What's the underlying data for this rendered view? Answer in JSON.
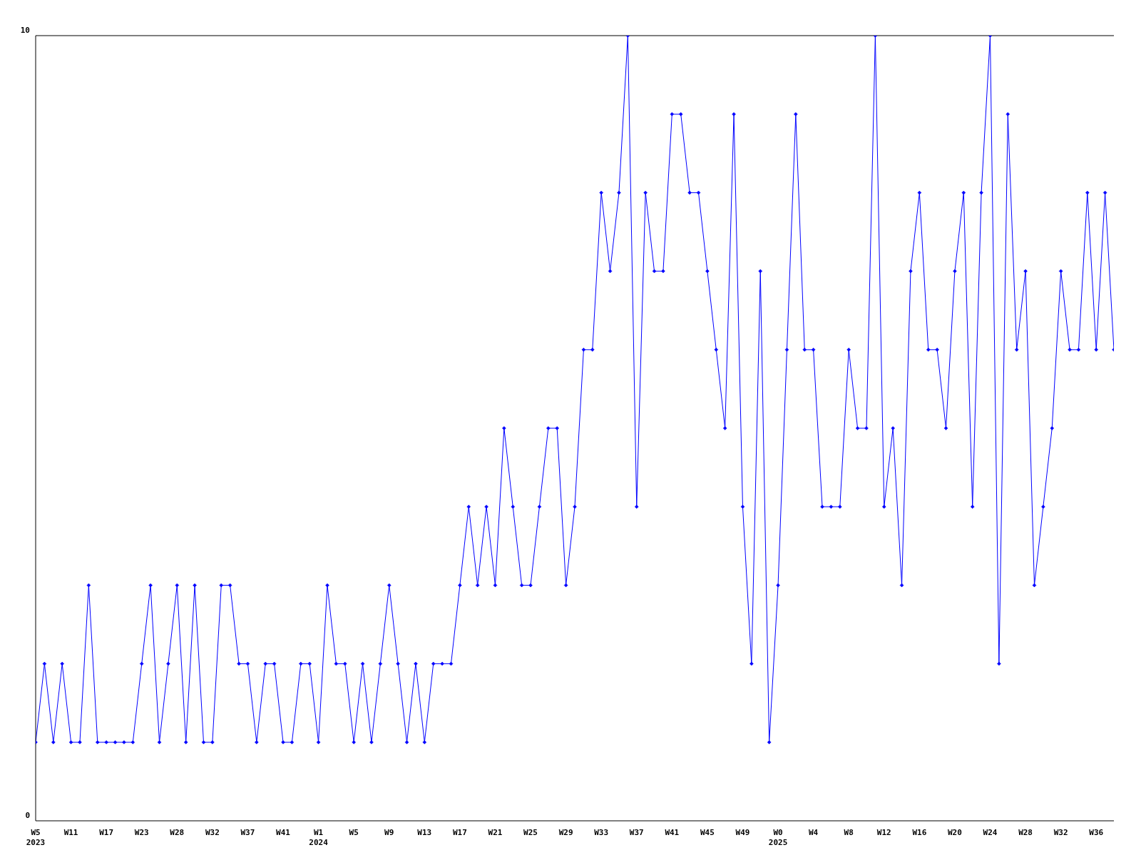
{
  "chart_data": {
    "type": "line",
    "categories": [
      "W5\n2023",
      null,
      null,
      null,
      "W11",
      null,
      null,
      null,
      "W17",
      null,
      null,
      null,
      "W23",
      null,
      null,
      null,
      "W28",
      null,
      null,
      null,
      "W32",
      null,
      null,
      null,
      "W37",
      null,
      null,
      null,
      "W41",
      null,
      null,
      null,
      "W1\n2024",
      null,
      null,
      null,
      "W5",
      null,
      null,
      null,
      "W9",
      null,
      null,
      null,
      "W13",
      null,
      null,
      null,
      "W17",
      null,
      null,
      null,
      "W21",
      null,
      null,
      null,
      "W25",
      null,
      null,
      null,
      "W29",
      null,
      null,
      null,
      "W33",
      null,
      null,
      null,
      "W37",
      null,
      null,
      null,
      "W41",
      null,
      null,
      null,
      "W45",
      null,
      null,
      null,
      "W49",
      null,
      null,
      null,
      "W0\n2025",
      null,
      null,
      null,
      "W4",
      null,
      null,
      null,
      "W8",
      null,
      null,
      null,
      "W12",
      null,
      null,
      null,
      "W16",
      null,
      null,
      null,
      "W20",
      null,
      null,
      null,
      "W24",
      null,
      null,
      null,
      "W28",
      null,
      null,
      null,
      "W32",
      null,
      null,
      null,
      "W36",
      null,
      null
    ],
    "series": [
      {
        "color": "#0000ff",
        "values": [
          1,
          2,
          1,
          2,
          1,
          1,
          3,
          1,
          1,
          1,
          1,
          1,
          2,
          3,
          1,
          2,
          3,
          1,
          3,
          1,
          1,
          3,
          3,
          2,
          2,
          1,
          2,
          2,
          1,
          1,
          2,
          2,
          1,
          3,
          2,
          2,
          1,
          2,
          1,
          2,
          3,
          2,
          1,
          2,
          1,
          2,
          2,
          2,
          3,
          4,
          3,
          4,
          3,
          5,
          4,
          3,
          3,
          4,
          5,
          5,
          3,
          4,
          6,
          6,
          8,
          7,
          8,
          10,
          4,
          8,
          7,
          7,
          9,
          9,
          8,
          8,
          7,
          6,
          5,
          9,
          4,
          2,
          7,
          1,
          3,
          6,
          9,
          6,
          6,
          4,
          4,
          4,
          6,
          5,
          5,
          10,
          4,
          5,
          3,
          7,
          8,
          6,
          6,
          5,
          7,
          8,
          4,
          8,
          10,
          2,
          9,
          6,
          7,
          3,
          4,
          5,
          7,
          6,
          6,
          8,
          6,
          8,
          6
        ]
      }
    ],
    "ylim": [
      0,
      10
    ],
    "yticks": [
      0,
      10
    ],
    "grid": false,
    "legend": false,
    "marker": "diamond",
    "line_style": "solid"
  }
}
